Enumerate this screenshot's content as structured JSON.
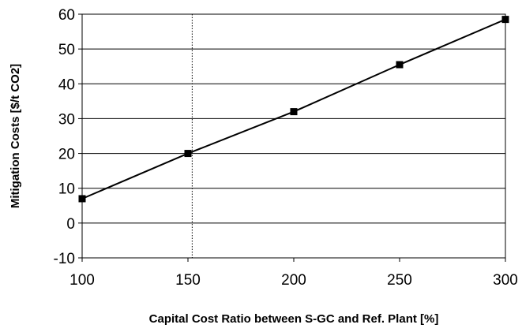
{
  "chart_data": {
    "type": "line",
    "xlabel": "Capital Cost Ratio between S-GC and Ref. Plant [%]",
    "ylabel": "Mitigation Costs [$/t CO2]",
    "xlim": [
      100,
      300
    ],
    "ylim": [
      -10,
      60
    ],
    "x_ticks": [
      100,
      150,
      200,
      250,
      300
    ],
    "y_ticks": [
      -10,
      0,
      10,
      20,
      30,
      40,
      50,
      60
    ],
    "grid": "horizontal",
    "marker": "square",
    "series": [
      {
        "x": [
          100,
          150,
          200,
          250,
          300
        ],
        "values": [
          7,
          20,
          32,
          45.5,
          58.5
        ]
      }
    ],
    "reference_line": {
      "x": 152,
      "style": "dotted"
    },
    "colors": {
      "line": "#000000",
      "grid": "#000000",
      "background": "#ffffff"
    }
  }
}
